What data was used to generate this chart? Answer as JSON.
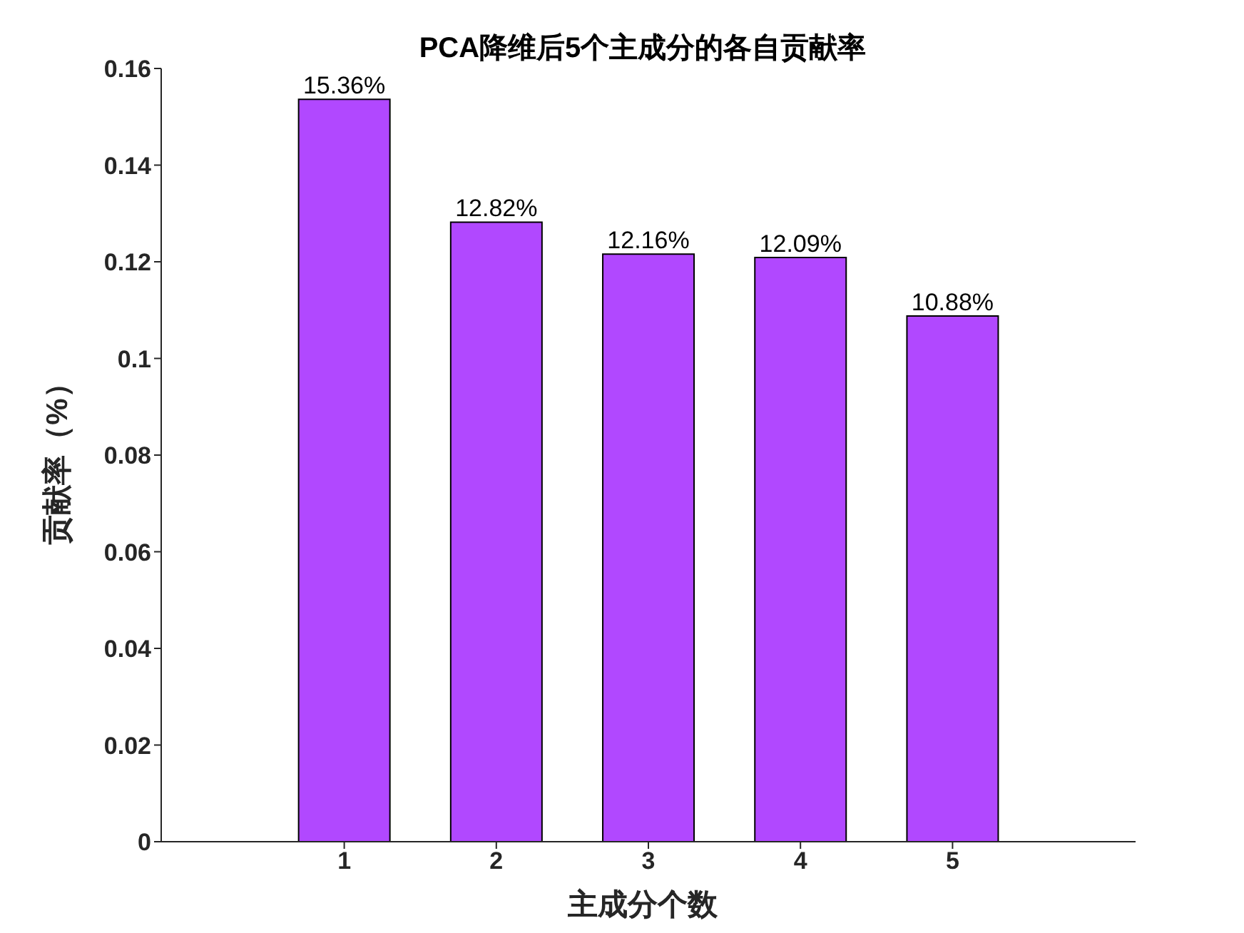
{
  "chart_data": {
    "type": "bar",
    "title": "PCA降维后5个主成分的各自贡献率",
    "xlabel": "主成分个数",
    "ylabel": "贡献率（%）",
    "categories": [
      "1",
      "2",
      "3",
      "4",
      "5"
    ],
    "values": [
      0.1536,
      0.1282,
      0.1216,
      0.1209,
      0.1088
    ],
    "value_labels": [
      "15.36%",
      "12.82%",
      "12.16%",
      "12.09%",
      "10.88%"
    ],
    "color": "#b148ff",
    "ylim": [
      0,
      0.16
    ],
    "yticks": [
      0,
      0.02,
      0.04,
      0.06,
      0.08,
      0.1,
      0.12,
      0.14,
      0.16
    ],
    "grid": false,
    "legend": false
  }
}
